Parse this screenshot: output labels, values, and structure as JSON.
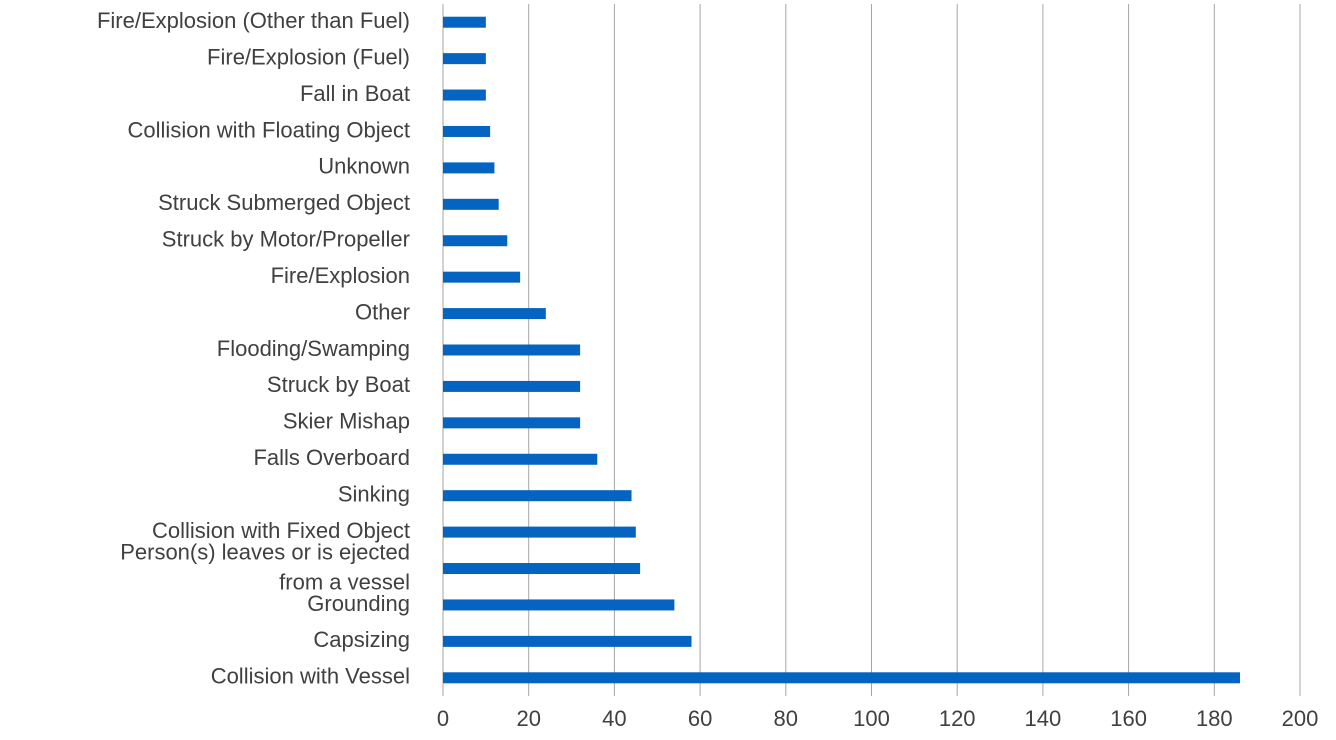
{
  "chart_data": {
    "type": "hbar",
    "categories": [
      "Fire/Explosion (Other than Fuel)",
      "Fire/Explosion (Fuel)",
      "Fall in Boat",
      "Collision with Floating Object",
      "Unknown",
      "Struck Submerged Object",
      "Struck by Motor/Propeller",
      "Fire/Explosion",
      "Other",
      "Flooding/Swamping",
      "Struck by Boat",
      "Skier Mishap",
      "Falls Overboard",
      "Sinking",
      "Collision with Fixed Object",
      [
        "Person(s) leaves or is ejected",
        "from a vessel"
      ],
      "Grounding",
      "Capsizing",
      "Collision with Vessel"
    ],
    "values": [
      10,
      10,
      10,
      11,
      12,
      13,
      15,
      18,
      24,
      32,
      32,
      32,
      36,
      44,
      45,
      46,
      54,
      58,
      186
    ],
    "color": "#0563c1",
    "xlim": [
      0,
      200
    ],
    "xticks": [
      0,
      20,
      40,
      60,
      80,
      100,
      120,
      140,
      160,
      180,
      200
    ],
    "grid": true
  }
}
